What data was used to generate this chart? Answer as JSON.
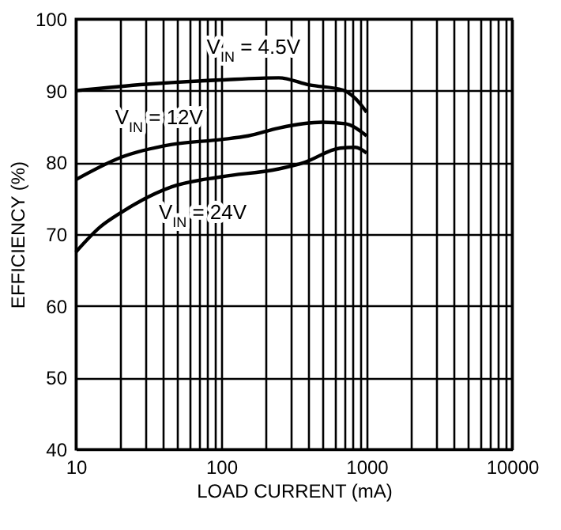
{
  "chart_data": {
    "type": "line",
    "xlabel": "LOAD CURRENT (mA)",
    "ylabel": "EFFICIENCY (%)",
    "log": "x",
    "grid": true,
    "legend": false,
    "xlim": [
      10,
      10000
    ],
    "ylim": [
      40,
      100
    ],
    "xticks": [
      10,
      {
        "value": 20,
        "label": null
      },
      {
        "value": 30,
        "label": null
      },
      {
        "value": 40,
        "label": null
      },
      {
        "value": 50,
        "label": null
      },
      {
        "value": 60,
        "label": null
      },
      {
        "value": 70,
        "label": null
      },
      {
        "value": 80,
        "label": null
      },
      {
        "value": 90,
        "label": null
      },
      100,
      {
        "value": 200,
        "label": null
      },
      {
        "value": 300,
        "label": null
      },
      {
        "value": 400,
        "label": null
      },
      {
        "value": 500,
        "label": null
      },
      {
        "value": 600,
        "label": null
      },
      {
        "value": 700,
        "label": null
      },
      {
        "value": 800,
        "label": null
      },
      {
        "value": 900,
        "label": null
      },
      1000,
      {
        "value": 2000,
        "label": null
      },
      {
        "value": 3000,
        "label": null
      },
      {
        "value": 4000,
        "label": null
      },
      {
        "value": 5000,
        "label": null
      },
      {
        "value": 6000,
        "label": null
      },
      {
        "value": 7000,
        "label": null
      },
      {
        "value": 8000,
        "label": null
      },
      {
        "value": 9000,
        "label": null
      },
      10000
    ],
    "yticks": [
      40,
      50,
      60,
      70,
      80,
      90,
      100
    ],
    "series": [
      {
        "color": "#000000",
        "x": [
          10,
          30.5,
          100,
          249,
          405,
          684,
          838,
          1000
        ],
        "values": [
          90.0,
          90.9,
          91.5,
          91.8,
          90.8,
          90.1,
          88.9,
          87.0
        ]
      },
      {
        "color": "#000000",
        "x": [
          10,
          20.4,
          45.7,
          100,
          153,
          249,
          495,
          712,
          1000
        ],
        "values": [
          77.6,
          80.7,
          82.5,
          83.2,
          83.7,
          84.8,
          85.6,
          85.4,
          83.7
        ]
      },
      {
        "color": "#000000",
        "x": [
          10,
          14.7,
          20.4,
          45.7,
          100,
          249,
          373,
          658,
          838,
          1000
        ],
        "values": [
          67.5,
          71.0,
          73.0,
          76.6,
          78.0,
          79.1,
          80.0,
          82.0,
          82.1,
          81.3
        ]
      }
    ],
    "annotations": [
      "V$_{IN}$ = 4.5V",
      "V$_{IN}$ = 12V",
      "V$_{IN}$ = 24V"
    ]
  }
}
